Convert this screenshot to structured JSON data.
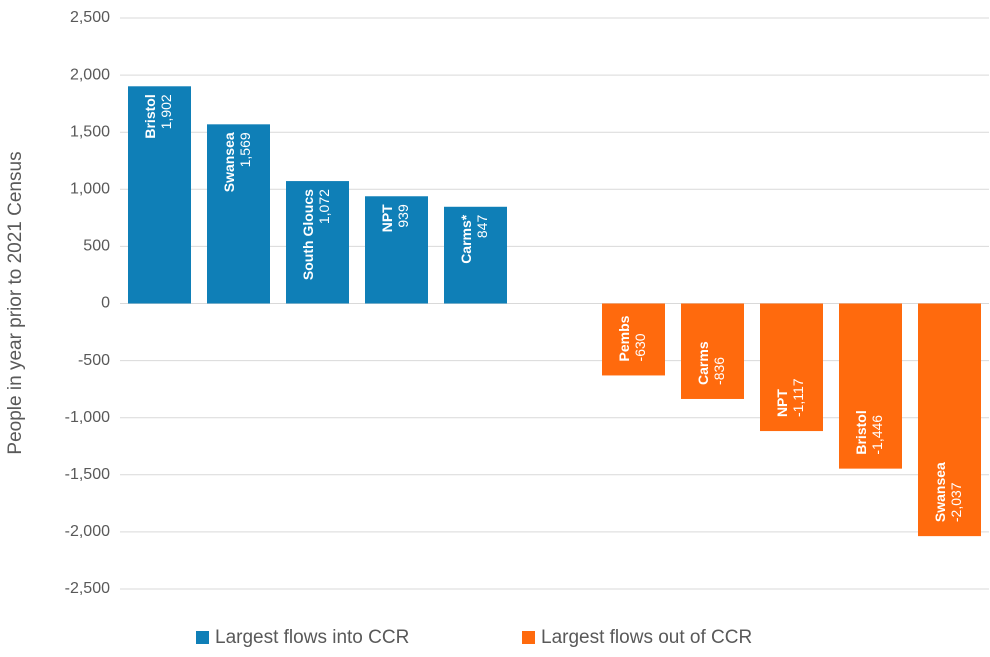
{
  "chart_data": {
    "type": "bar",
    "y_label": "People in year prior to 2021 Census",
    "categories": [
      "Bristol",
      "Swansea",
      "South Gloucs",
      "NPT",
      "Carms*",
      null,
      "Pembs",
      "Carms",
      "NPT",
      "Bristol",
      "Swansea"
    ],
    "series": [
      {
        "name": "Largest flows into CCR",
        "color": "#0f7fb7",
        "values": [
          1902,
          1569,
          1072,
          939,
          847,
          null,
          null,
          null,
          null,
          null,
          null
        ],
        "value_labels": [
          "1,902",
          "1,569",
          "1,072",
          "939",
          "847",
          null,
          null,
          null,
          null,
          null,
          null
        ]
      },
      {
        "name": "Largest flows out of CCR",
        "color": "#ff6a0d",
        "values": [
          null,
          null,
          null,
          null,
          null,
          null,
          -630,
          -836,
          -1117,
          -1446,
          -2037
        ],
        "value_labels": [
          null,
          null,
          null,
          null,
          null,
          null,
          "-630",
          "-836",
          "-1,117",
          "-1,446",
          "-2,037"
        ]
      }
    ],
    "ylim": [
      -2500,
      2500
    ],
    "yticks": [
      {
        "value": -2500,
        "label": "-2,500"
      },
      {
        "value": -2000,
        "label": "-2,000"
      },
      {
        "value": -1500,
        "label": "-1,500"
      },
      {
        "value": -1000,
        "label": "-1,000"
      },
      -500,
      0,
      500,
      {
        "value": 1000,
        "label": "1,000"
      },
      {
        "value": 1500,
        "label": "1,500"
      },
      {
        "value": 2000,
        "label": "2,000"
      },
      {
        "value": 2500,
        "label": "2,500"
      }
    ],
    "grid": true,
    "legend": "bottom"
  }
}
